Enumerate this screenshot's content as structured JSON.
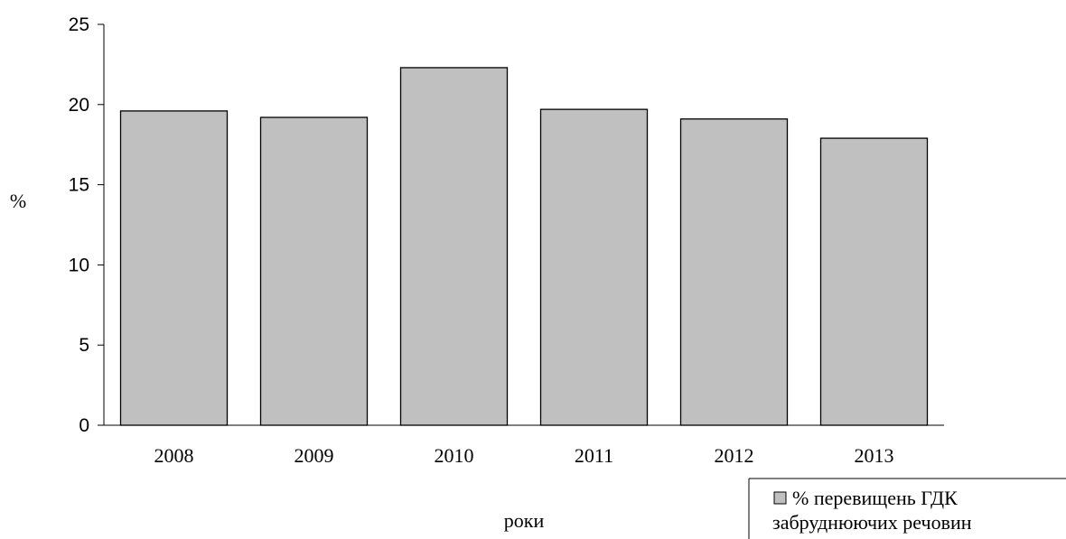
{
  "chart_data": {
    "type": "bar",
    "categories": [
      "2008",
      "2009",
      "2010",
      "2011",
      "2012",
      "2013"
    ],
    "series": [
      {
        "name": "% перевищень ГДК забруднюючих речовин",
        "values": [
          19.6,
          19.2,
          22.3,
          19.7,
          19.1,
          17.9
        ],
        "color": "#c0c0c0"
      }
    ],
    "title": "",
    "xlabel": "роки",
    "ylabel": "%",
    "ylim": [
      0,
      25
    ],
    "yticks": [
      0,
      5,
      10,
      15,
      20,
      25
    ],
    "grid": false,
    "legend": {
      "position": "bottom-right",
      "lines": [
        "% перевищень ГДК",
        "забруднюючих речовин"
      ]
    }
  }
}
